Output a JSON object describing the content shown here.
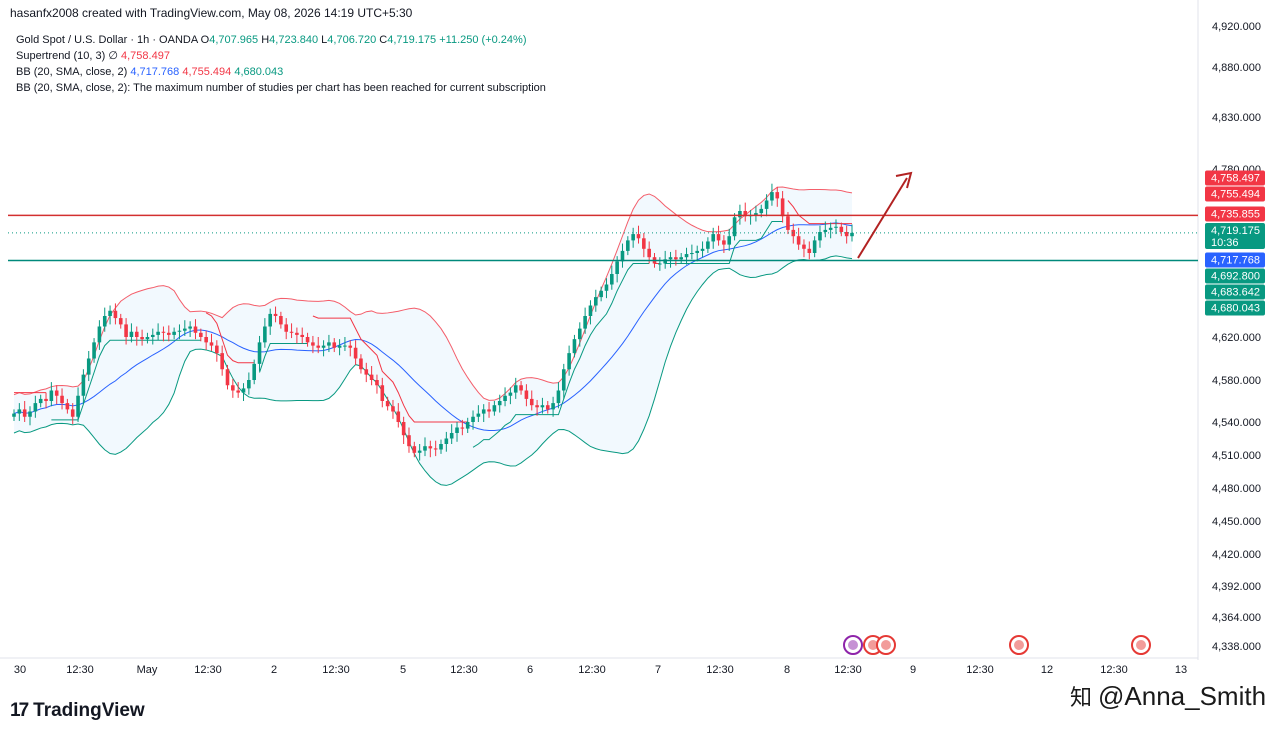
{
  "header": {
    "created": "hasanfx2008 created with TradingView.com, May 08, 2026 14:19 UTC+5:30"
  },
  "legend": {
    "symbol": "Gold Spot / U.S. Dollar · 1h · OANDA",
    "o_label": "O",
    "o": "4,707.965",
    "h_label": "H",
    "h": "4,723.840",
    "l_label": "L",
    "l": "4,706.720",
    "c_label": "C",
    "c": "4,719.175",
    "chg": "+11.250 (+0.24%)",
    "st_label": "Supertrend (10, 3)",
    "st_sym": "∅",
    "st_value": "4,758.497",
    "bb_label": "BB (20, SMA, close, 2)",
    "bb_mid": "4,717.768",
    "bb_up": "4,755.494",
    "bb_low": "4,680.043",
    "bb2_label": "BB (20, SMA, close, 2): The maximum number of studies per chart has been reached for current subscription"
  },
  "price_labels": [
    {
      "text": "4,758.497",
      "value": 4758.497,
      "color": "#f23645"
    },
    {
      "text": "4,755.494",
      "value": 4755.494,
      "color": "#f23645"
    },
    {
      "text": "4,735.855",
      "value": 4735.855,
      "color": "#f23645"
    },
    {
      "text": "4,719.175",
      "sub": "10:36",
      "value": 4719.175,
      "color": "#089981"
    },
    {
      "text": "4,717.768",
      "value": 4717.768,
      "color": "#2962ff"
    },
    {
      "text": "4,692.800",
      "value": 4692.8,
      "color": "#089981"
    },
    {
      "text": "4,683.642",
      "value": 4683.642,
      "color": "#089981"
    },
    {
      "text": "4,680.043",
      "value": 4680.043,
      "color": "#089981"
    }
  ],
  "footer": {
    "brand": "TradingView",
    "brand_mark": "17",
    "watermark": "@Anna_Smith",
    "watermark_icon": "知"
  },
  "colors": {
    "up": "#089981",
    "down": "#f23645",
    "mid": "#2962ff",
    "resistance": "#d32f2f",
    "support": "#00897b"
  },
  "chart_data": {
    "type": "candlestick",
    "y_ticks": [
      4920,
      4880,
      4830,
      4780,
      4620,
      4580,
      4540,
      4510,
      4480,
      4450,
      4420,
      4392,
      4364,
      4338
    ],
    "y_tick_labels": [
      "4,920.000",
      "4,880.000",
      "4,830.000",
      "4,780.000",
      "4,620.000",
      "4,580.000",
      "4,540.000",
      "4,510.000",
      "4,480.000",
      "4,450.000",
      "4,420.000",
      "4,392.000",
      "4,364.000",
      "4,338.000"
    ],
    "x_labels": [
      "30",
      "12:30",
      "May",
      "12:30",
      "2",
      "12:30",
      "5",
      "12:30",
      "6",
      "12:30",
      "7",
      "12:30",
      "8",
      "12:30",
      "9",
      "12:30",
      "12",
      "12:30",
      "13"
    ],
    "resistance": 4735.855,
    "support": 4692.8,
    "last_price": 4719.175,
    "closes": [
      4548,
      4552,
      4545,
      4550,
      4558,
      4562,
      4560,
      4570,
      4565,
      4558,
      4552,
      4545,
      4565,
      4585,
      4600,
      4615,
      4630,
      4640,
      4645,
      4638,
      4632,
      4620,
      4625,
      4620,
      4618,
      4620,
      4622,
      4625,
      4624,
      4622,
      4625,
      4626,
      4628,
      4630,
      4624,
      4620,
      4615,
      4612,
      4605,
      4590,
      4575,
      4570,
      4568,
      4572,
      4580,
      4595,
      4615,
      4630,
      4642,
      4640,
      4632,
      4625,
      4624,
      4622,
      4620,
      4615,
      4612,
      4610,
      4612,
      4615,
      4610,
      4612,
      4612,
      4610,
      4600,
      4590,
      4585,
      4580,
      4575,
      4560,
      4555,
      4550,
      4540,
      4528,
      4518,
      4512,
      4514,
      4518,
      4516,
      4515,
      4520,
      4525,
      4530,
      4535,
      4534,
      4540,
      4545,
      4548,
      4552,
      4550,
      4556,
      4560,
      4565,
      4568,
      4575,
      4570,
      4562,
      4556,
      4554,
      4556,
      4552,
      4558,
      4570,
      4590,
      4605,
      4618,
      4628,
      4640,
      4650,
      4658,
      4664,
      4670,
      4680,
      4692,
      4702,
      4712,
      4718,
      4714,
      4704,
      4696,
      4690,
      4690,
      4694,
      4696,
      4694,
      4696,
      4699,
      4700,
      4702,
      4704,
      4711,
      4718,
      4712,
      4708,
      4716,
      4734,
      4740,
      4735,
      4736,
      4738,
      4742,
      4750,
      4758,
      4752,
      4735,
      4722,
      4716,
      4708,
      4704,
      4700,
      4712,
      4720,
      4722,
      4724,
      4725,
      4720,
      4716,
      4719.175
    ],
    "resistance_label": "4,735.855",
    "support_label": "4,692.800"
  }
}
